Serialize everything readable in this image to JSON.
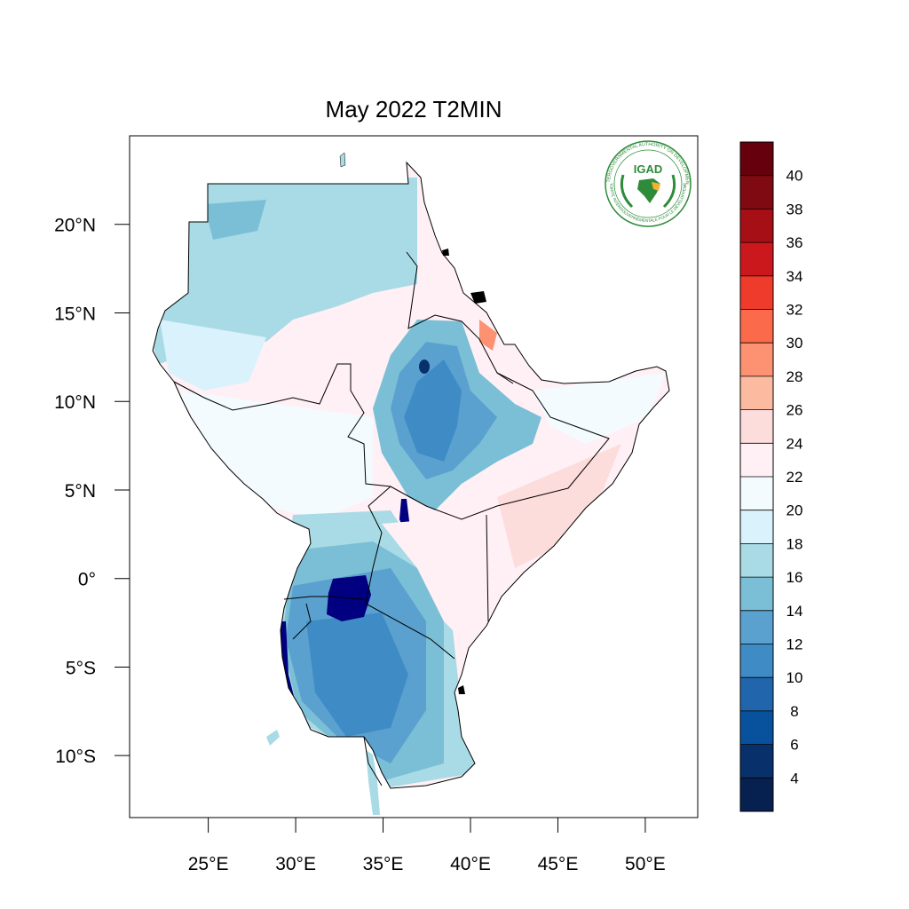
{
  "map": {
    "title": "May 2022 T2MIN",
    "lon_ticks": [
      {
        "lon": 25,
        "label": "25°E"
      },
      {
        "lon": 30,
        "label": "30°E"
      },
      {
        "lon": 35,
        "label": "35°E"
      },
      {
        "lon": 40,
        "label": "40°E"
      },
      {
        "lon": 45,
        "label": "45°E"
      },
      {
        "lon": 50,
        "label": "50°E"
      }
    ],
    "lat_ticks": [
      {
        "lat": 20,
        "label": "20°N"
      },
      {
        "lat": 15,
        "label": "15°N"
      },
      {
        "lat": 10,
        "label": "10°N"
      },
      {
        "lat": 5,
        "label": "5°N"
      },
      {
        "lat": 0,
        "label": "0°"
      },
      {
        "lat": -5,
        "label": "5°S"
      },
      {
        "lat": -10,
        "label": "10°S"
      }
    ],
    "extent": {
      "lon_min": 20.5,
      "lon_max": 53.0,
      "lat_min": -13.5,
      "lat_max": 25.0
    }
  },
  "colorbar": {
    "labels": [
      "40",
      "38",
      "36",
      "34",
      "32",
      "30",
      "28",
      "26",
      "24",
      "22",
      "20",
      "18",
      "16",
      "14",
      "12",
      "10",
      "8",
      "6",
      "4"
    ],
    "colors_top_to_bottom": [
      "#67000d",
      "#7f0a12",
      "#a50f15",
      "#cb181d",
      "#ef3b2c",
      "#fb6a4a",
      "#fc9272",
      "#fcbba1",
      "#fddcdc",
      "#fff0f5",
      "#f3fbff",
      "#daf2fb",
      "#a8dbe5",
      "#7bbfd6",
      "#5aa1cf",
      "#3f8bc6",
      "#2166ac",
      "#08519c",
      "#08306b",
      "#06204f"
    ]
  },
  "logo": {
    "acronym": "IGAD",
    "ring_text": "INTERGOVERNMENTAL AUTHORITY ON DEVELOPMENT",
    "ring_text_fr": "AUTORITÉ INTERGOUVERNEMENTALE POUR LE DÉVELOPPEMENT"
  }
}
